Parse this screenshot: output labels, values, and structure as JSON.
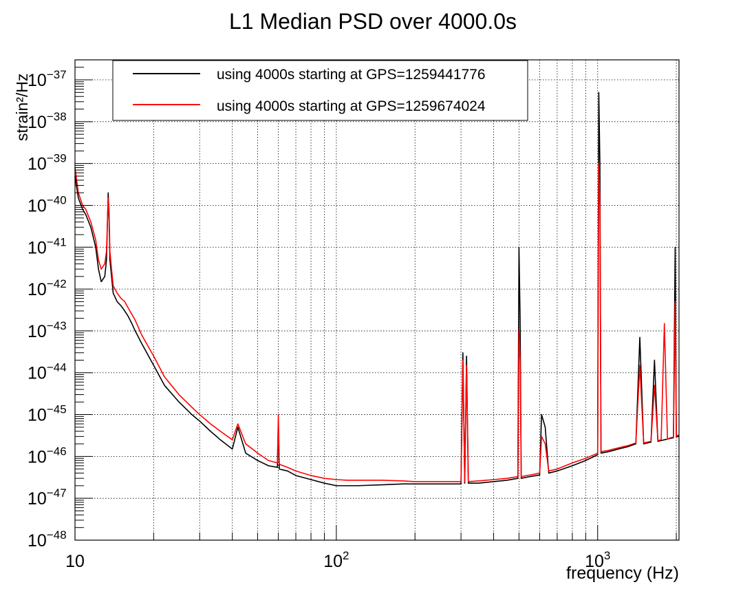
{
  "chart_data": {
    "type": "line",
    "title": "L1 Median PSD over 4000.0s",
    "xlabel": "frequency (Hz)",
    "ylabel": "strain²/Hz",
    "x_scale": "log",
    "y_scale": "log",
    "xlim": [
      10,
      2048
    ],
    "ylim": [
      1e-48,
      3e-37
    ],
    "grid": true,
    "legend_position": "top-left",
    "x_ticks": [
      {
        "value": 10,
        "base": "10",
        "exp": ""
      },
      {
        "value": 100,
        "base": "10",
        "exp": "2"
      },
      {
        "value": 1000,
        "base": "10",
        "exp": "3"
      }
    ],
    "y_ticks": [
      {
        "value": 1e-48,
        "base": "10",
        "exp": "−48"
      },
      {
        "value": 1e-47,
        "base": "10",
        "exp": "−47"
      },
      {
        "value": 1e-46,
        "base": "10",
        "exp": "−46"
      },
      {
        "value": 1e-45,
        "base": "10",
        "exp": "−45"
      },
      {
        "value": 1e-44,
        "base": "10",
        "exp": "−44"
      },
      {
        "value": 1e-43,
        "base": "10",
        "exp": "−43"
      },
      {
        "value": 1e-42,
        "base": "10",
        "exp": "−42"
      },
      {
        "value": 1e-41,
        "base": "10",
        "exp": "−41"
      },
      {
        "value": 1e-40,
        "base": "10",
        "exp": "−40"
      },
      {
        "value": 1e-39,
        "base": "10",
        "exp": "−39"
      },
      {
        "value": 1e-38,
        "base": "10",
        "exp": "−38"
      },
      {
        "value": 1e-37,
        "base": "10",
        "exp": "−37"
      }
    ],
    "series": [
      {
        "name": "using 4000s starting at GPS=1259441776",
        "color": "#000000",
        "x": [
          10,
          10.3,
          10.7,
          11,
          11.5,
          12,
          12.3,
          12.6,
          13,
          13.2,
          13.4,
          13.5,
          13.6,
          13.8,
          14,
          14.5,
          15,
          15.5,
          16,
          16.5,
          17,
          18,
          20,
          22,
          25,
          28,
          30,
          33,
          36,
          40,
          42,
          45,
          50,
          55,
          59.5,
          60,
          60.5,
          65,
          70,
          80,
          90,
          100,
          110,
          120,
          150,
          180,
          200,
          250,
          300,
          305,
          310,
          315,
          320,
          350,
          400,
          450,
          495,
          500,
          505,
          510,
          550,
          600,
          610,
          630,
          650,
          700,
          800,
          900,
          1000,
          1010,
          1020,
          1030,
          1100,
          1200,
          1300,
          1400,
          1450,
          1500,
          1550,
          1600,
          1650,
          1700,
          1750,
          1800,
          1850,
          1900,
          1950,
          1980,
          2000,
          2020,
          2048
        ],
        "y": [
          5e-40,
          1.5e-40,
          8e-41,
          6e-41,
          3e-41,
          1e-41,
          3e-42,
          1.5e-42,
          2e-42,
          5e-42,
          2e-40,
          5e-41,
          5e-42,
          2e-42,
          8e-43,
          5e-43,
          4e-43,
          3e-43,
          2.2e-43,
          1.5e-43,
          1e-43,
          5e-44,
          1.5e-44,
          5e-45,
          2e-45,
          1e-45,
          7e-46,
          4e-46,
          2.5e-46,
          1.5e-46,
          5e-46,
          1.2e-46,
          8e-47,
          6e-47,
          5.5e-47,
          6e-46,
          5e-47,
          4.5e-47,
          3.5e-47,
          2.8e-47,
          2.3e-47,
          2e-47,
          2e-47,
          2e-47,
          2.1e-47,
          2.2e-47,
          2.2e-47,
          2.2e-47,
          2.2e-47,
          3e-44,
          2.3e-47,
          2.5e-44,
          2.3e-47,
          2.3e-47,
          2.5e-47,
          2.7e-47,
          3e-47,
          1e-41,
          2e-43,
          3e-47,
          3.3e-47,
          3.6e-47,
          1e-45,
          5e-46,
          4e-47,
          4.5e-47,
          6e-47,
          8e-47,
          1.1e-46,
          5e-38,
          1e-39,
          1.2e-46,
          1.3e-46,
          1.5e-46,
          1.7e-46,
          2e-46,
          7e-44,
          2e-46,
          2.1e-46,
          2.2e-46,
          2e-44,
          2.3e-46,
          2.4e-46,
          2.5e-46,
          2.6e-46,
          2.7e-46,
          2.8e-46,
          1e-41,
          2.9e-46,
          3e-46,
          3e-46
        ]
      },
      {
        "name": "using 4000s starting at GPS=1259674024",
        "color": "#ff0000",
        "x": [
          10,
          10.3,
          10.7,
          11,
          11.5,
          12,
          12.3,
          12.6,
          13,
          13.2,
          13.4,
          13.5,
          13.6,
          13.8,
          14,
          14.5,
          15,
          15.5,
          16,
          16.5,
          17,
          18,
          20,
          22,
          25,
          28,
          30,
          33,
          36,
          40,
          42,
          45,
          50,
          55,
          59.5,
          60,
          60.5,
          65,
          70,
          80,
          90,
          100,
          110,
          120,
          150,
          180,
          200,
          250,
          300,
          305,
          310,
          315,
          320,
          350,
          400,
          450,
          495,
          500,
          505,
          510,
          550,
          600,
          610,
          630,
          650,
          700,
          800,
          900,
          1000,
          1010,
          1020,
          1030,
          1100,
          1200,
          1300,
          1400,
          1450,
          1500,
          1550,
          1600,
          1650,
          1700,
          1750,
          1800,
          1850,
          1900,
          1950,
          1980,
          2000,
          2020,
          2048
        ],
        "y": [
          8e-40,
          2e-40,
          1e-40,
          8e-41,
          4e-41,
          1.5e-41,
          5e-42,
          3e-42,
          4e-42,
          8e-42,
          1.5e-40,
          8e-41,
          8e-42,
          3e-42,
          1.2e-42,
          8e-43,
          6e-43,
          5e-43,
          3.5e-43,
          2.5e-43,
          1.8e-43,
          8e-44,
          2.5e-44,
          8e-45,
          3e-45,
          1.5e-45,
          1e-45,
          6e-46,
          4e-46,
          2.5e-46,
          6e-46,
          2e-46,
          1.2e-46,
          8e-47,
          7e-47,
          1e-45,
          6.5e-47,
          5.5e-47,
          4.5e-47,
          3.5e-47,
          3e-47,
          2.8e-47,
          2.7e-47,
          2.7e-47,
          2.7e-47,
          2.6e-47,
          2.5e-47,
          2.5e-47,
          2.5e-47,
          2e-44,
          2.5e-47,
          1.5e-44,
          2.5e-47,
          2.6e-47,
          2.8e-47,
          3e-47,
          3.3e-47,
          1e-43,
          2e-44,
          3.3e-47,
          3.6e-47,
          4e-47,
          3e-46,
          2e-46,
          4.5e-47,
          5e-47,
          7e-47,
          9e-47,
          1.2e-46,
          1e-39,
          1e-40,
          1.3e-46,
          1.4e-46,
          1.6e-46,
          1.8e-46,
          2.1e-46,
          1.5e-44,
          2.1e-46,
          2.2e-46,
          2.3e-46,
          5e-45,
          2.4e-46,
          2.5e-46,
          1.5e-43,
          2.6e-46,
          2.8e-46,
          2.9e-46,
          5e-43,
          3e-46,
          3.2e-46,
          3.2e-46
        ]
      }
    ]
  }
}
